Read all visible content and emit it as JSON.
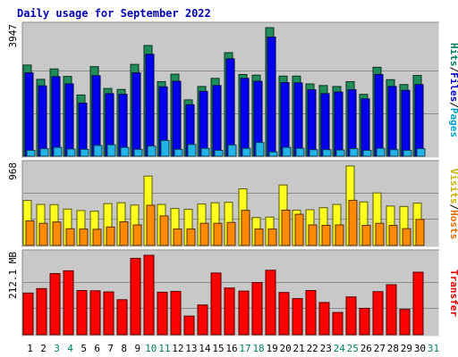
{
  "chart_data": {
    "type": "bar",
    "title": "Daily usage for September 2022",
    "categories": [
      "1",
      "2",
      "3",
      "4",
      "5",
      "6",
      "7",
      "8",
      "9",
      "10",
      "11",
      "12",
      "13",
      "14",
      "15",
      "16",
      "17",
      "18",
      "19",
      "20",
      "21",
      "22",
      "23",
      "24",
      "25",
      "26",
      "27",
      "28",
      "29",
      "30",
      "31"
    ],
    "weekend_days": [
      "3",
      "4",
      "10",
      "11",
      "17",
      "18",
      "24",
      "25",
      "31"
    ],
    "panels": [
      {
        "name": "hits-files-pages",
        "ylabel": "3947",
        "ylim": [
          0,
          3947
        ],
        "axis_labels": [
          {
            "text": "Hits",
            "color": "#00805c"
          },
          {
            "text": "/",
            "color": "#000000"
          },
          {
            "text": "Files",
            "color": "#0000c0"
          },
          {
            "text": "/",
            "color": "#000000"
          },
          {
            "text": "Pages",
            "color": "#00a0c8"
          }
        ],
        "series": [
          {
            "name": "Hits",
            "color": "#1f8c5a",
            "values": [
              2800,
              2360,
              2680,
              2450,
              1880,
              2750,
              2080,
              2050,
              2820,
              3400,
              2290,
              2520,
              1730,
              2140,
              2390,
              3180,
              2510,
              2490,
              3947,
              2460,
              2460,
              2220,
              2170,
              2140,
              2290,
              1900,
              2730,
              2350,
              2200,
              2480,
              null
            ]
          },
          {
            "name": "Files",
            "color": "#0000ee",
            "values": [
              2560,
              2160,
              2440,
              2220,
              1630,
              2470,
              1920,
              1900,
              2560,
              3130,
              2130,
              2300,
              1580,
              1990,
              2170,
              2990,
              2390,
              2300,
              3660,
              2260,
              2250,
              2040,
              1920,
              1970,
              2040,
              1760,
              2510,
              2140,
              2020,
              2200,
              null
            ]
          },
          {
            "name": "Pages",
            "color": "#22b4e8",
            "values": [
              180,
              230,
              270,
              220,
              210,
              330,
              350,
              270,
              210,
              310,
              480,
              210,
              360,
              240,
              180,
              340,
              240,
              420,
              130,
              270,
              240,
              200,
              200,
              190,
              230,
              180,
              240,
              200,
              180,
              230,
              null
            ]
          }
        ]
      },
      {
        "name": "visits-hosts",
        "ylabel": "968",
        "ylim": [
          0,
          968
        ],
        "axis_labels": [
          {
            "text": "Visits",
            "color": "#c8b000"
          },
          {
            "text": "/",
            "color": "#000000"
          },
          {
            "text": "Hosts",
            "color": "#e07000"
          }
        ],
        "series": [
          {
            "name": "Visits",
            "color": "#ffff1e",
            "values": [
              548,
              500,
              497,
              443,
              425,
              417,
              510,
              520,
              492,
              846,
              500,
              450,
              440,
              505,
              520,
              525,
              690,
              340,
              345,
              737,
              430,
              435,
              460,
              500,
              968,
              530,
              640,
              480,
              475,
              516,
              null
            ]
          },
          {
            "name": "Hosts",
            "color": "#ff8a00",
            "values": [
              300,
              270,
              286,
              203,
              200,
              197,
              225,
              288,
              250,
              490,
              360,
              200,
              200,
              270,
              270,
              280,
              428,
              200,
              200,
              430,
              380,
              250,
              245,
              250,
              550,
              245,
              270,
              245,
              205,
              317,
              null
            ]
          }
        ]
      },
      {
        "name": "transfer",
        "ylabel": "212.1 MB",
        "ylim": [
          0,
          286
        ],
        "axis_labels": [
          {
            "text": "Transfer",
            "color": "#e00000"
          }
        ],
        "series": [
          {
            "name": "Transfer",
            "color": "#ff0000",
            "values": [
              150,
              166,
              220,
              230,
              159,
              158,
              154,
              126,
              275,
              286,
              153,
              156,
              67,
              107,
              222,
              168,
              157,
              188,
              232,
              152,
              130,
              159,
              116,
              80,
              136,
              95,
              155,
              180,
              91,
              225,
              null
            ]
          }
        ]
      }
    ]
  }
}
